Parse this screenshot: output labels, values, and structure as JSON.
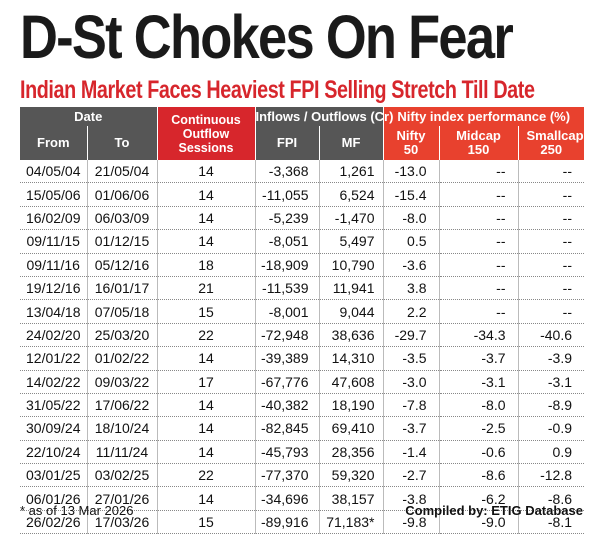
{
  "title": "D-St Chokes On Fear",
  "subtitle": "Indian Market Faces Heaviest FPI Selling Stretch Till Date",
  "table": {
    "header_groups": {
      "date": "Date",
      "continuous": "Continuous Outflow Sessions",
      "flows": "Inflows / Outflows (Cr)",
      "nifty_perf": "Nifty index performance (%)"
    },
    "columns": {
      "from": "From",
      "to": "To",
      "fpi": "FPI",
      "mf": "MF",
      "nifty50": "Nifty 50",
      "midcap150": "Midcap 150",
      "smallcap250": "Smallcap 250"
    },
    "rows": [
      [
        "04/05/04",
        "21/05/04",
        "14",
        "-3,368",
        "1,261",
        "-13.0",
        "--",
        "--"
      ],
      [
        "15/05/06",
        "01/06/06",
        "14",
        "-11,055",
        "6,524",
        "-15.4",
        "--",
        "--"
      ],
      [
        "16/02/09",
        "06/03/09",
        "14",
        "-5,239",
        "-1,470",
        "-8.0",
        "--",
        "--"
      ],
      [
        "09/11/15",
        "01/12/15",
        "14",
        "-8,051",
        "5,497",
        "0.5",
        "--",
        "--"
      ],
      [
        "09/11/16",
        "05/12/16",
        "18",
        "-18,909",
        "10,790",
        "-3.6",
        "--",
        "--"
      ],
      [
        "19/12/16",
        "16/01/17",
        "21",
        "-11,539",
        "11,941",
        "3.8",
        "--",
        "--"
      ],
      [
        "13/04/18",
        "07/05/18",
        "15",
        "-8,001",
        "9,044",
        "2.2",
        "--",
        "--"
      ],
      [
        "24/02/20",
        "25/03/20",
        "22",
        "-72,948",
        "38,636",
        "-29.7",
        "-34.3",
        "-40.6"
      ],
      [
        "12/01/22",
        "01/02/22",
        "14",
        "-39,389",
        "14,310",
        "-3.5",
        "-3.7",
        "-3.9"
      ],
      [
        "14/02/22",
        "09/03/22",
        "17",
        "-67,776",
        "47,608",
        "-3.0",
        "-3.1",
        "-3.1"
      ],
      [
        "31/05/22",
        "17/06/22",
        "14",
        "-40,382",
        "18,190",
        "-7.8",
        "-8.0",
        "-8.9"
      ],
      [
        "30/09/24",
        "18/10/24",
        "14",
        "-82,845",
        "69,410",
        "-3.7",
        "-2.5",
        "-0.9"
      ],
      [
        "22/10/24",
        "11/11/24",
        "14",
        "-45,793",
        "28,356",
        "-1.4",
        "-0.6",
        "0.9"
      ],
      [
        "03/01/25",
        "03/02/25",
        "22",
        "-77,370",
        "59,320",
        "-2.7",
        "-8.6",
        "-12.8"
      ],
      [
        "06/01/26",
        "27/01/26",
        "14",
        "-34,696",
        "38,157",
        "-3.8",
        "-6.2",
        "-8.6"
      ],
      [
        "26/02/26",
        "17/03/26",
        "15",
        "-89,916",
        "71,183*",
        "-9.8",
        "-9.0",
        "-8.1"
      ]
    ]
  },
  "footnote": "* as of 13 Mar 2026",
  "compiled_by": "Compiled by: ETIG Database"
}
